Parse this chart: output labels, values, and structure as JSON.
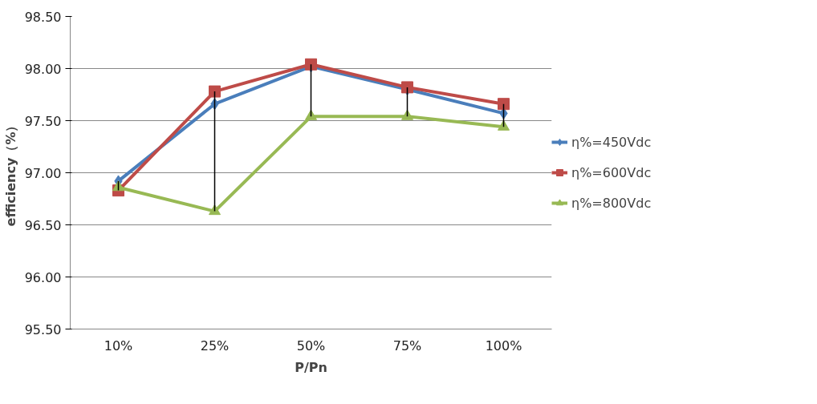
{
  "chart_data": {
    "type": "line",
    "xlabel": "P/Pn",
    "ylabel": "efficiency（%）",
    "categories": [
      "10%",
      "25%",
      "50%",
      "75%",
      "100%"
    ],
    "series": [
      {
        "name": "η%=450Vdc",
        "color": "#4a7ebb",
        "marker": "diamond",
        "values": [
          96.92,
          97.66,
          98.02,
          97.8,
          97.57
        ]
      },
      {
        "name": "η%=600Vdc",
        "color": "#be4b48",
        "marker": "square",
        "values": [
          96.83,
          97.78,
          98.04,
          97.82,
          97.66
        ]
      },
      {
        "name": "η%=800Vdc",
        "color": "#98b954",
        "marker": "triangle",
        "values": [
          96.86,
          96.63,
          97.54,
          97.54,
          97.44
        ],
        "errors": [
          [
            96.83,
            96.92
          ],
          [
            96.63,
            97.78
          ],
          [
            97.54,
            98.04
          ],
          [
            97.54,
            97.82
          ],
          [
            97.44,
            97.66
          ]
        ]
      }
    ],
    "ylim": [
      95.5,
      98.5
    ],
    "yticks": [
      {
        "value": 95.5,
        "label": "95.50"
      },
      {
        "value": 96.0,
        "label": "96.00"
      },
      {
        "value": 96.5,
        "label": "96.50"
      },
      {
        "value": 97.0,
        "label": "97.00"
      },
      {
        "value": 97.5,
        "label": "97.50"
      },
      {
        "value": 98.0,
        "label": "98.00"
      },
      {
        "value": 98.5,
        "label": "98.50"
      }
    ],
    "grid": "y",
    "legend": "right"
  }
}
